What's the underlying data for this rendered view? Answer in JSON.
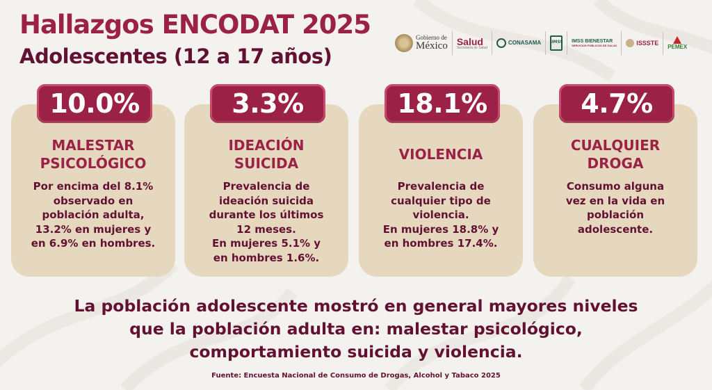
{
  "header": {
    "title": "Hallazgos ENCODAT 2025",
    "subtitle": "Adolescentes (12 a 17 años)"
  },
  "logos": {
    "gobierno_line1": "Gobierno de",
    "gobierno_line2": "México",
    "salud": "Salud",
    "salud_sub": "Secretaría de Salud",
    "conasama": "CONASAMA",
    "imss": "IMSS",
    "imss_bienestar_line1": "IMSS BIENESTAR",
    "imss_bienestar_line2": "SERVICIOS PÚBLICOS DE SALUD",
    "issste": "ISSSTE",
    "pemex": "PEMEX"
  },
  "cards": [
    {
      "value": "10.0%",
      "heading": [
        "MALESTAR",
        "PSICOLÓGICO"
      ],
      "body": [
        "Por encima del 8.1%",
        "observado en",
        "población adulta,",
        "13.2% en mujeres y",
        "en 6.9% en hombres."
      ]
    },
    {
      "value": "3.3%",
      "heading": [
        "IDEACIÓN",
        "SUICIDA"
      ],
      "body": [
        "Prevalencia de",
        "ideación suicida",
        "durante los últimos",
        "12 meses.",
        "En mujeres 5.1% y",
        "en hombres 1.6%."
      ]
    },
    {
      "value": "18.1%",
      "heading": [
        "VIOLENCIA"
      ],
      "body": [
        "Prevalencia de",
        "cualquier tipo de",
        "violencia.",
        "En mujeres 18.8% y",
        "en hombres 17.4%."
      ]
    },
    {
      "value": "4.7%",
      "heading": [
        "CUALQUIER",
        "DROGA"
      ],
      "body": [
        "Consumo alguna",
        "vez en la vida en",
        "población",
        "adolescente."
      ]
    }
  ],
  "conclusion": [
    "La población adolescente mostró en general mayores niveles",
    "que la población adulta en: malestar psicológico,",
    "comportamiento suicida y violencia."
  ],
  "source": "Fuente: Encuesta Nacional de Consumo de Drogas, Alcohol y Tabaco 2025",
  "colors": {
    "primary": "#9b2246",
    "dark": "#621132",
    "card": "#e6d8bf",
    "background": "#f4f2ef"
  }
}
